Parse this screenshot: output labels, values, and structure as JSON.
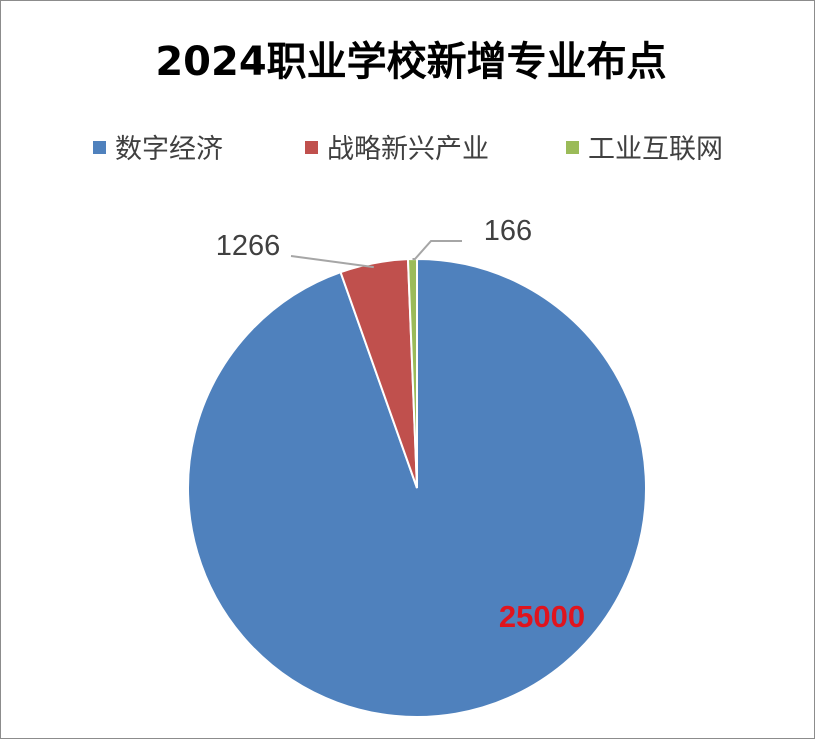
{
  "chart_data": {
    "type": "pie",
    "title": "2024职业学校新增专业布点",
    "legend_position": "top",
    "categories": [
      "数字经济",
      "战略新兴产业",
      "工业互联网"
    ],
    "values": [
      25000,
      1266,
      166
    ],
    "colors": [
      "#4f81bd",
      "#c0504d",
      "#9bbb59"
    ],
    "data_labels": [
      "25000",
      "1266",
      "166"
    ],
    "label_colors": [
      "#e0141e",
      "#404040",
      "#404040"
    ]
  }
}
